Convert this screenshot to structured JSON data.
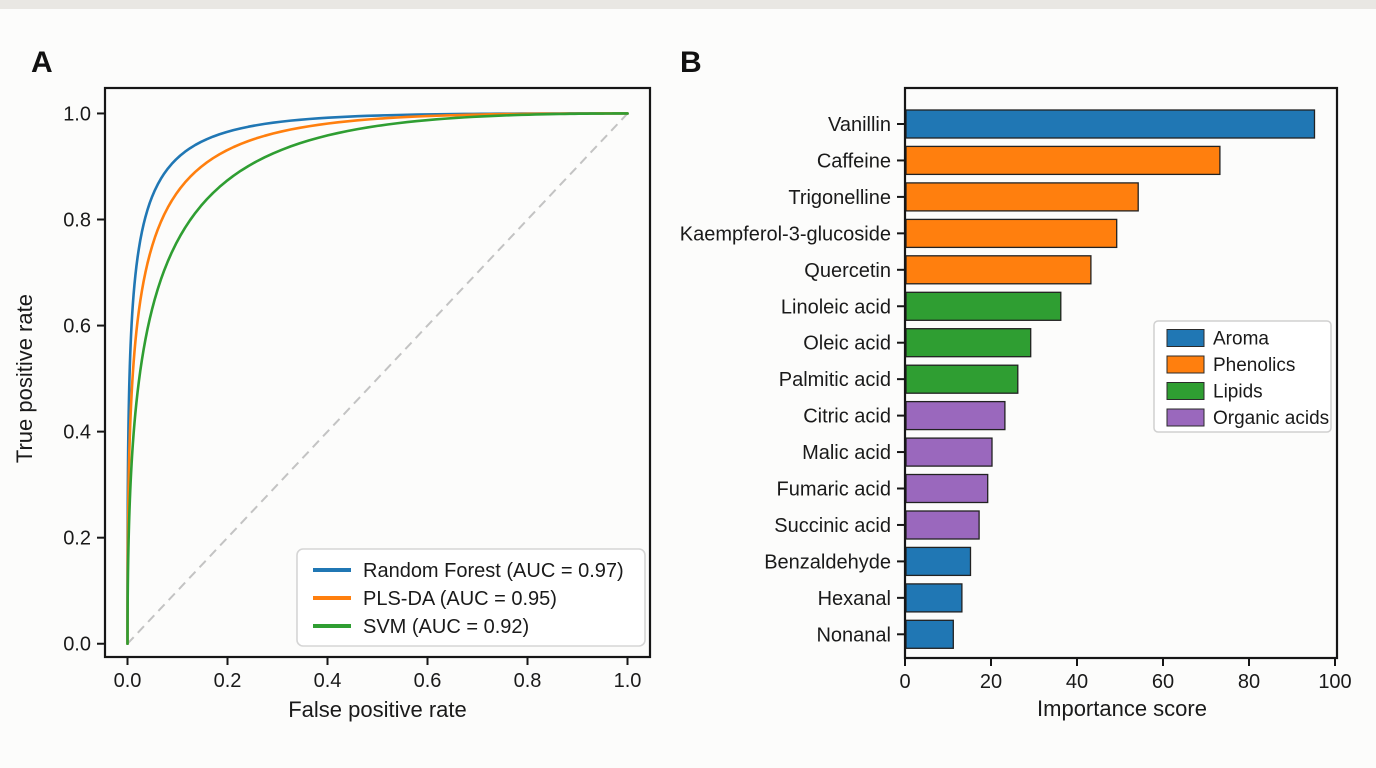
{
  "figure": {
    "panels": [
      {
        "label": "A"
      },
      {
        "label": "B"
      }
    ]
  },
  "chart_data": [
    {
      "id": "roc",
      "panel": "A",
      "type": "line",
      "title": "",
      "xlabel": "False positive rate",
      "ylabel": "True positive rate",
      "xlim": [
        0.0,
        1.0
      ],
      "ylim": [
        0.0,
        1.0
      ],
      "xticks": [
        "0.0",
        "0.2",
        "0.4",
        "0.6",
        "0.8",
        "1.0"
      ],
      "yticks": [
        "0.0",
        "0.2",
        "0.4",
        "0.6",
        "0.8",
        "1.0"
      ],
      "grid": false,
      "legend_position": "lower right",
      "series": [
        {
          "name": "Random Forest",
          "auc": 0.97,
          "legend_label": "Random Forest (AUC = 0.97)",
          "color": "#2077b4"
        },
        {
          "name": "PLS-DA",
          "auc": 0.95,
          "legend_label": "PLS-DA (AUC = 0.95)",
          "color": "#ff7f0e"
        },
        {
          "name": "SVM",
          "auc": 0.92,
          "legend_label": "SVM (AUC = 0.92)",
          "color": "#2f9e32"
        }
      ],
      "reference_line": {
        "type": "diagonal",
        "style": "dashed",
        "color": "#c3c3c3"
      }
    },
    {
      "id": "importance",
      "panel": "B",
      "type": "bar",
      "orientation": "horizontal",
      "title": "",
      "xlabel": "Importance score",
      "xlim": [
        0,
        100
      ],
      "xticks": [
        "0",
        "20",
        "40",
        "60",
        "80",
        "100"
      ],
      "grid": false,
      "legend_position": "center right",
      "categories": [
        "Vanillin",
        "Caffeine",
        "Trigonelline",
        "Kaempferol-3-glucoside",
        "Quercetin",
        "Linoleic acid",
        "Oleic acid",
        "Palmitic acid",
        "Citric acid",
        "Malic acid",
        "Fumaric acid",
        "Succinic acid",
        "Benzaldehyde",
        "Hexanal",
        "Nonanal"
      ],
      "values": [
        95,
        73,
        54,
        49,
        43,
        36,
        29,
        26,
        23,
        20,
        19,
        17,
        15,
        13,
        11
      ],
      "bar_groups": [
        "Aroma",
        "Phenolics",
        "Phenolics",
        "Phenolics",
        "Phenolics",
        "Lipids",
        "Lipids",
        "Lipids",
        "Organic acids",
        "Organic acids",
        "Organic acids",
        "Organic acids",
        "Aroma",
        "Aroma",
        "Aroma"
      ],
      "legend": [
        {
          "label": "Aroma",
          "color": "#2077b4"
        },
        {
          "label": "Phenolics",
          "color": "#ff7f0e"
        },
        {
          "label": "Lipids",
          "color": "#2f9e32"
        },
        {
          "label": "Organic acids",
          "color": "#9a68bd"
        }
      ]
    }
  ]
}
